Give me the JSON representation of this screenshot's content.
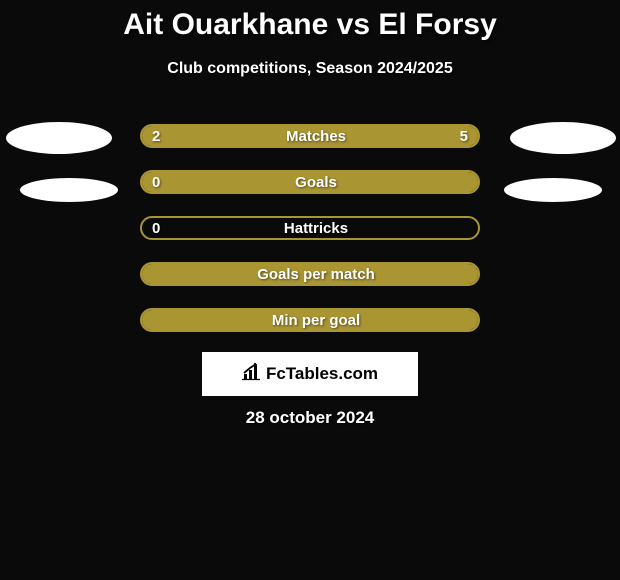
{
  "title": {
    "player1": "Ait Ouarkhane",
    "vs": "vs",
    "player2": "El Forsy"
  },
  "subtitle": "Club competitions, Season 2024/2025",
  "bars": [
    {
      "label": "Matches",
      "left": "2",
      "right": "5",
      "left_pct": 28.6,
      "right_pct": 71.4
    },
    {
      "label": "Goals",
      "left": "0",
      "right": "",
      "left_pct": 0,
      "right_pct": 100
    },
    {
      "label": "Hattricks",
      "left": "0",
      "right": "",
      "left_pct": 0,
      "right_pct": 0
    },
    {
      "label": "Goals per match",
      "left": "",
      "right": "",
      "left_pct": 0,
      "right_pct": 100
    },
    {
      "label": "Min per goal",
      "left": "",
      "right": "",
      "left_pct": 0,
      "right_pct": 100
    }
  ],
  "logo": {
    "text": "FcTables.com"
  },
  "date": "28 october 2024",
  "colors": {
    "background": "#0a0a0a",
    "accent": "#a99532",
    "text": "#ffffff",
    "logo_bg": "#ffffff",
    "logo_text": "#000000"
  }
}
